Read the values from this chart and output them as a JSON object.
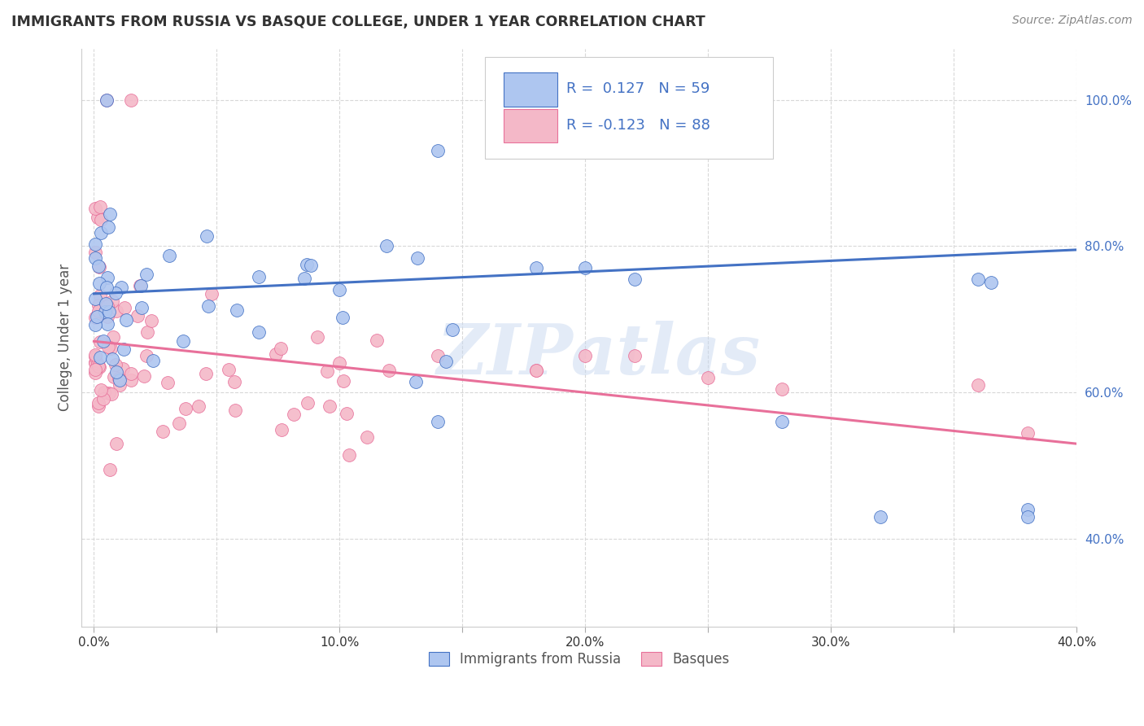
{
  "title": "IMMIGRANTS FROM RUSSIA VS BASQUE COLLEGE, UNDER 1 YEAR CORRELATION CHART",
  "source": "Source: ZipAtlas.com",
  "ylabel": "College, Under 1 year",
  "x_tick_labels": [
    "0.0%",
    "",
    "10.0%",
    "",
    "20.0%",
    "",
    "30.0%",
    "",
    "40.0%"
  ],
  "x_tick_vals": [
    0.0,
    5.0,
    10.0,
    15.0,
    20.0,
    25.0,
    30.0,
    35.0,
    40.0
  ],
  "y_tick_labels": [
    "40.0%",
    "60.0%",
    "80.0%",
    "100.0%"
  ],
  "y_tick_vals": [
    40.0,
    60.0,
    80.0,
    100.0
  ],
  "xlim": [
    -0.5,
    40.0
  ],
  "ylim": [
    28.0,
    107.0
  ],
  "blue_color": "#aec6f0",
  "blue_edge_color": "#4472c4",
  "pink_color": "#f4b8c8",
  "pink_edge_color": "#e8709a",
  "blue_line_color": "#4472c4",
  "pink_line_color": "#e8709a",
  "blue_trend": [
    0.0,
    40.0,
    73.5,
    79.5
  ],
  "pink_trend": [
    0.0,
    40.0,
    67.0,
    53.0
  ],
  "watermark": "ZIPatlas",
  "watermark_color": "#c8d8f0",
  "background_color": "#ffffff",
  "grid_color": "#d8d8d8",
  "title_color": "#333333",
  "legend_blue_text": "R =  0.127   N = 59",
  "legend_pink_text": "R = -0.123   N = 88",
  "legend_text_color": "#4472c4",
  "bottom_label_blue": "Immigrants from Russia",
  "bottom_label_pink": "Basques",
  "bottom_label_color": "#555555"
}
